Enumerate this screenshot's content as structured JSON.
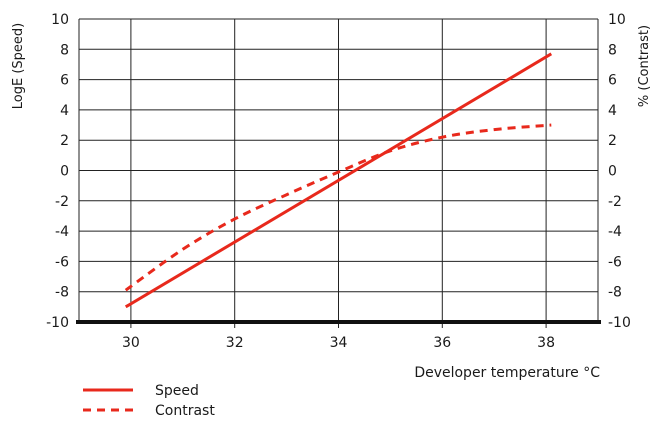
{
  "chart_data": {
    "type": "line",
    "title": "",
    "xlabel": "Developer temperature °C",
    "ylabel_left": "LogE (Speed)",
    "ylabel_right": "% (Contrast)",
    "xlim": [
      29,
      39
    ],
    "ylim_left": [
      -10,
      10
    ],
    "ylim_right": [
      -10,
      10
    ],
    "x_ticks": [
      30,
      32,
      34,
      36,
      38
    ],
    "y_ticks_left": [
      -10,
      -8,
      -6,
      -4,
      -2,
      0,
      2,
      4,
      6,
      8,
      10
    ],
    "y_ticks_right": [
      -10,
      -8,
      -6,
      -4,
      -2,
      0,
      2,
      4,
      6,
      8,
      10
    ],
    "grid": true,
    "legend_position": "bottom-left",
    "series": [
      {
        "name": "Speed",
        "style": "solid",
        "color": "#e8291c",
        "axis": "left",
        "x": [
          29.9,
          38.1
        ],
        "y": [
          -9.0,
          7.7
        ]
      },
      {
        "name": "Contrast",
        "style": "dashed",
        "color": "#e8291c",
        "axis": "right",
        "x": [
          29.9,
          31.0,
          32.0,
          33.0,
          34.0,
          35.0,
          36.0,
          37.0,
          38.1
        ],
        "y": [
          -7.9,
          -5.2,
          -3.2,
          -1.6,
          -0.1,
          1.3,
          2.2,
          2.7,
          3.0
        ]
      }
    ]
  }
}
